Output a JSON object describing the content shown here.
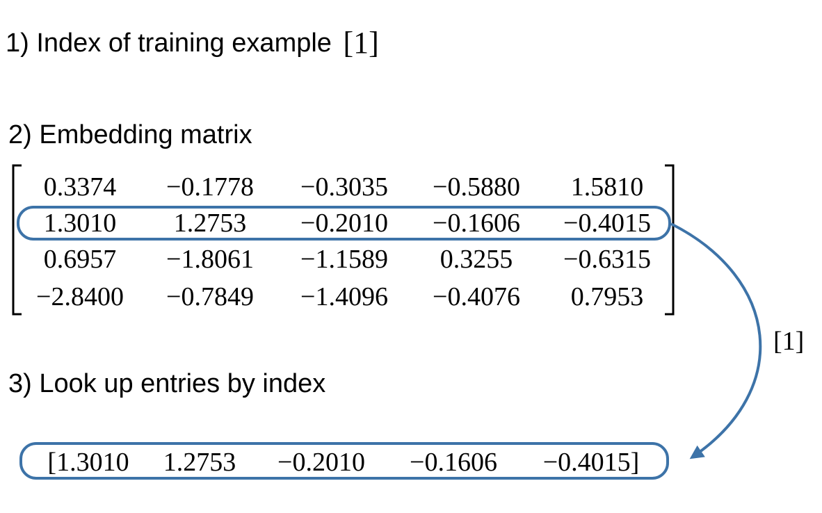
{
  "steps": {
    "step1_label": "1) Index of training example",
    "step1_index": "[1]",
    "step2_label": "2) Embedding matrix",
    "step3_label": "3) Look up entries by index"
  },
  "matrix": {
    "rows": [
      [
        "0.3374",
        "−0.1778",
        "−0.3035",
        "−0.5880",
        "1.5810"
      ],
      [
        "1.3010",
        "1.2753",
        "−0.2010",
        "−0.1606",
        "−0.4015"
      ],
      [
        "0.6957",
        "−1.8061",
        "−1.1589",
        "0.3255",
        "−0.6315"
      ],
      [
        "−2.8400",
        "−0.7849",
        "−1.4096",
        "−0.4076",
        "0.7953"
      ]
    ],
    "highlighted_row": 1
  },
  "lookup": {
    "arrow_label": "[1]",
    "result": [
      "[1.3010",
      "1.2753",
      "−0.2010",
      "−0.1606",
      "−0.4015]"
    ]
  },
  "colors": {
    "highlight": "#3d73a8",
    "text": "#000000"
  }
}
